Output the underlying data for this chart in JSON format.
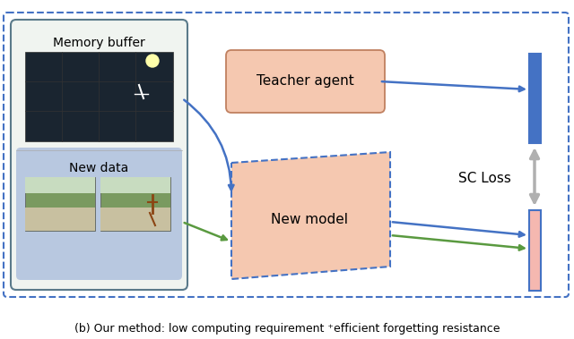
{
  "caption": "(b) Our method: low computing requirement ⁺efficient forgetting resistance",
  "bg_color": "#ffffff",
  "dashed_border_color": "#4472c4",
  "left_box_bg": "#f0f4f0",
  "left_box_border": "#5a7a8a",
  "new_data_bg": "#b8c8e0",
  "teacher_box_bg": "#f5c8b0",
  "teacher_box_border": "#c08060",
  "new_model_bg": "#f5c8b0",
  "new_model_border": "#4472c4",
  "feature_bar_blue_color": "#4472c4",
  "feature_bar_pink_color": "#f5b8b0",
  "feature_bar_border": "#4472c4",
  "arrow_blue": "#4472c4",
  "arrow_green": "#5a9a40",
  "arrow_gray": "#b0b0b0",
  "sc_loss_text": "SC Loss",
  "teacher_label": "Teacher agent",
  "new_model_label": "New model",
  "memory_label": "Memory buffer",
  "newdata_label": "New data",
  "img_dark_bg": "#1a2530",
  "img_grid_color": "#333333",
  "img_green": "#7a9a60",
  "img_sky": "#c8dcc0",
  "img_road": "#c8c0a0"
}
